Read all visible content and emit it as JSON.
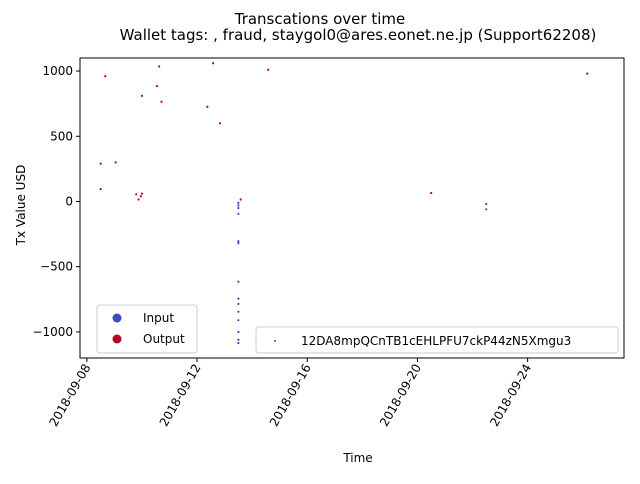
{
  "chart_data": {
    "type": "scatter",
    "title": "Transcations over time",
    "subtitle": "Wallet tags: , fraud, staygol0@ares.eonet.ne.jp  (Support62208)",
    "xlabel": "Time",
    "ylabel": "Tx Value USD",
    "xlim": [
      "2018-09-07T18:00",
      "2018-09-27T12:00"
    ],
    "ylim": [
      -1200,
      1100
    ],
    "x_ticks": [
      "2018-09-08",
      "2018-09-12",
      "2018-09-16",
      "2018-09-20",
      "2018-09-24"
    ],
    "y_ticks": [
      -1000,
      -500,
      0,
      500,
      1000
    ],
    "grid": false,
    "colors": {
      "input": "#3b4cc0",
      "output": "#b40426"
    },
    "legend_color": {
      "placement": "bottom-left",
      "entries": [
        {
          "label": "Input",
          "color": "#3b4cc0"
        },
        {
          "label": "Output",
          "color": "#b40426"
        }
      ]
    },
    "legend_address": {
      "placement": "bottom-right",
      "label": "12DA8mpQCnTB1cEHLPFU7ckP44zN5Xmgu3"
    },
    "series": [
      {
        "name": "Output",
        "points": [
          {
            "x": "2018-09-08T12:00",
            "y": 290
          },
          {
            "x": "2018-09-08T12:00",
            "y": 95
          },
          {
            "x": "2018-09-08T16:00",
            "y": 960
          },
          {
            "x": "2018-09-09T01:00",
            "y": 300
          },
          {
            "x": "2018-09-09T19:00",
            "y": 55
          },
          {
            "x": "2018-09-09T21:00",
            "y": 15
          },
          {
            "x": "2018-09-09T23:00",
            "y": 40
          },
          {
            "x": "2018-09-10T00:00",
            "y": 60
          },
          {
            "x": "2018-09-10T00:00",
            "y": 810
          },
          {
            "x": "2018-09-10T13:00",
            "y": 885
          },
          {
            "x": "2018-09-10T15:00",
            "y": 1035
          },
          {
            "x": "2018-09-10T17:00",
            "y": 765
          },
          {
            "x": "2018-09-12T09:00",
            "y": 725
          },
          {
            "x": "2018-09-12T14:00",
            "y": 1060
          },
          {
            "x": "2018-09-12T20:00",
            "y": 600
          },
          {
            "x": "2018-09-13T14:00",
            "y": 15
          },
          {
            "x": "2018-09-14T14:00",
            "y": 1010
          },
          {
            "x": "2018-09-20T12:00",
            "y": 65
          },
          {
            "x": "2018-09-26T04:00",
            "y": 980
          }
        ]
      },
      {
        "name": "Input",
        "points": [
          {
            "x": "2018-09-13T12:00",
            "y": -10
          },
          {
            "x": "2018-09-13T12:00",
            "y": -30
          },
          {
            "x": "2018-09-13T12:00",
            "y": -50
          },
          {
            "x": "2018-09-13T12:00",
            "y": -95
          },
          {
            "x": "2018-09-13T12:00",
            "y": -305
          },
          {
            "x": "2018-09-13T12:00",
            "y": -320
          },
          {
            "x": "2018-09-13T12:00",
            "y": -615
          },
          {
            "x": "2018-09-13T12:00",
            "y": -745
          },
          {
            "x": "2018-09-13T12:00",
            "y": -785
          },
          {
            "x": "2018-09-13T12:00",
            "y": -845
          },
          {
            "x": "2018-09-13T12:00",
            "y": -910
          },
          {
            "x": "2018-09-13T12:00",
            "y": -1000
          },
          {
            "x": "2018-09-13T12:00",
            "y": -1060
          },
          {
            "x": "2018-09-13T12:00",
            "y": -1085
          },
          {
            "x": "2018-09-22T12:00",
            "y": -20
          },
          {
            "x": "2018-09-22T12:00",
            "y": -60
          }
        ]
      }
    ]
  }
}
